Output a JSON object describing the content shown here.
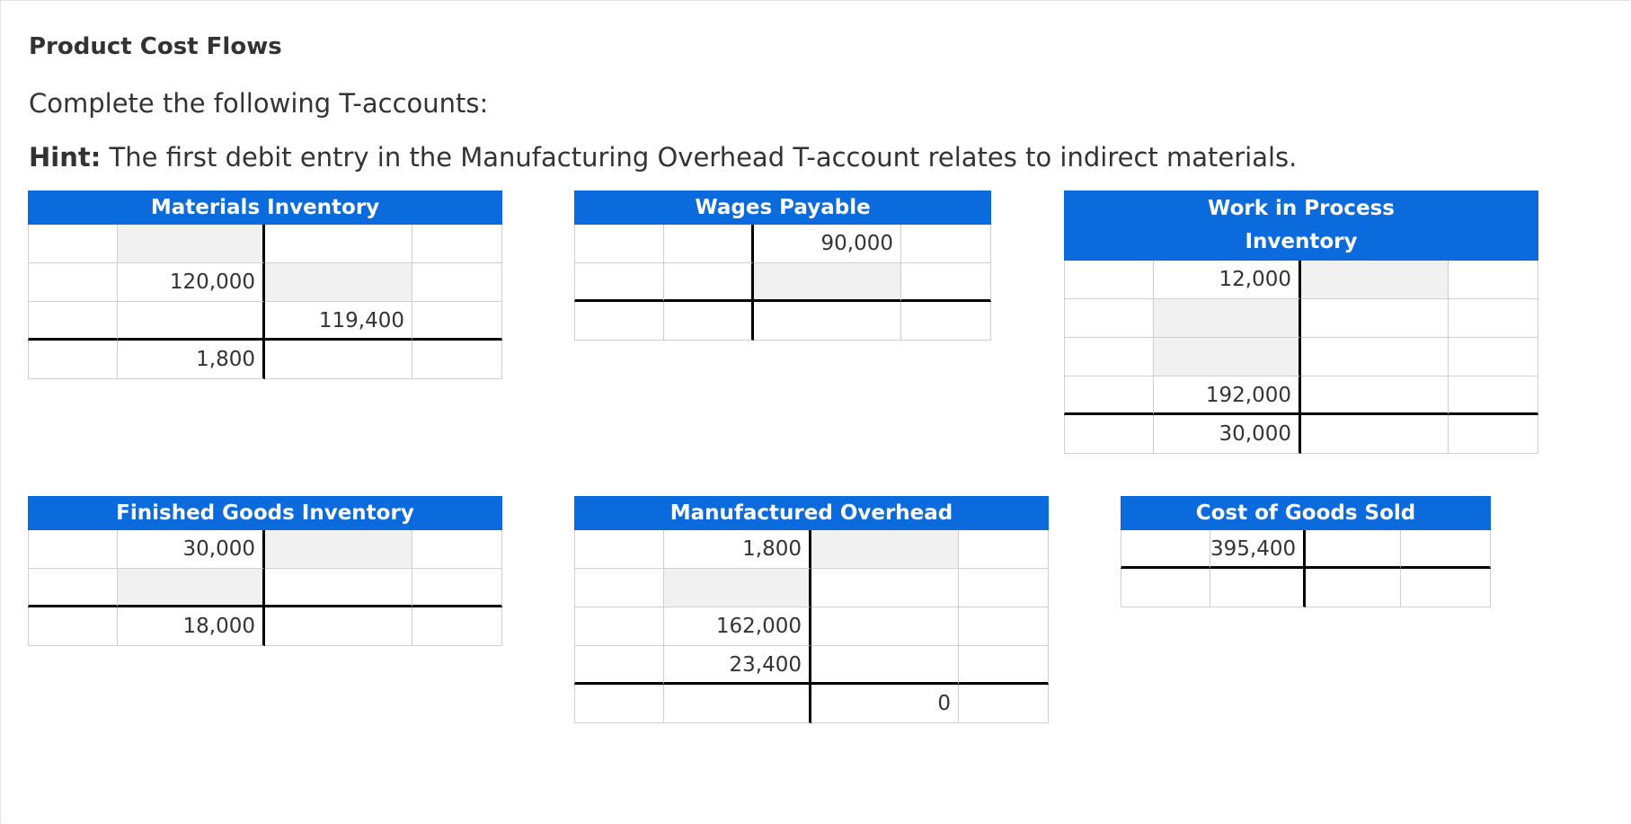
{
  "page": {
    "title": "Product Cost Flows",
    "instruction": "Complete the following T-accounts:",
    "hint_label": "Hint:",
    "hint_text": " The first debit entry in the Manufacturing Overhead T-account relates to indirect materials."
  },
  "accounts": {
    "materials_inventory": {
      "title": "Materials Inventory",
      "rows": [
        [
          "",
          "",
          "",
          ""
        ],
        [
          "",
          "120,000",
          "",
          ""
        ],
        [
          "",
          "",
          "119,400",
          ""
        ],
        [
          "",
          "1,800",
          "",
          ""
        ]
      ]
    },
    "wages_payable": {
      "title": "Wages Payable",
      "rows": [
        [
          "",
          "",
          "90,000",
          ""
        ],
        [
          "",
          "",
          "",
          ""
        ],
        [
          "",
          "",
          "",
          ""
        ]
      ]
    },
    "work_in_process": {
      "title_line1": "Work in Process",
      "title_line2": "Inventory",
      "rows": [
        [
          "",
          "12,000",
          "",
          ""
        ],
        [
          "",
          "",
          "",
          ""
        ],
        [
          "",
          "",
          "",
          ""
        ],
        [
          "",
          "192,000",
          "",
          ""
        ],
        [
          "",
          "30,000",
          "",
          ""
        ]
      ]
    },
    "finished_goods": {
      "title": "Finished Goods Inventory",
      "rows": [
        [
          "",
          "30,000",
          "",
          ""
        ],
        [
          "",
          "",
          "",
          ""
        ],
        [
          "",
          "18,000",
          "",
          ""
        ]
      ]
    },
    "manufactured_overhead": {
      "title": "Manufactured Overhead",
      "rows": [
        [
          "",
          "1,800",
          "",
          ""
        ],
        [
          "",
          "",
          "",
          ""
        ],
        [
          "",
          "162,000",
          "",
          ""
        ],
        [
          "",
          "23,400",
          "",
          ""
        ],
        [
          "",
          "",
          "0",
          ""
        ]
      ]
    },
    "cost_of_goods_sold": {
      "title": "Cost of Goods Sold",
      "rows": [
        [
          "",
          "395,400",
          "",
          ""
        ],
        [
          "",
          "",
          "",
          ""
        ]
      ]
    }
  }
}
